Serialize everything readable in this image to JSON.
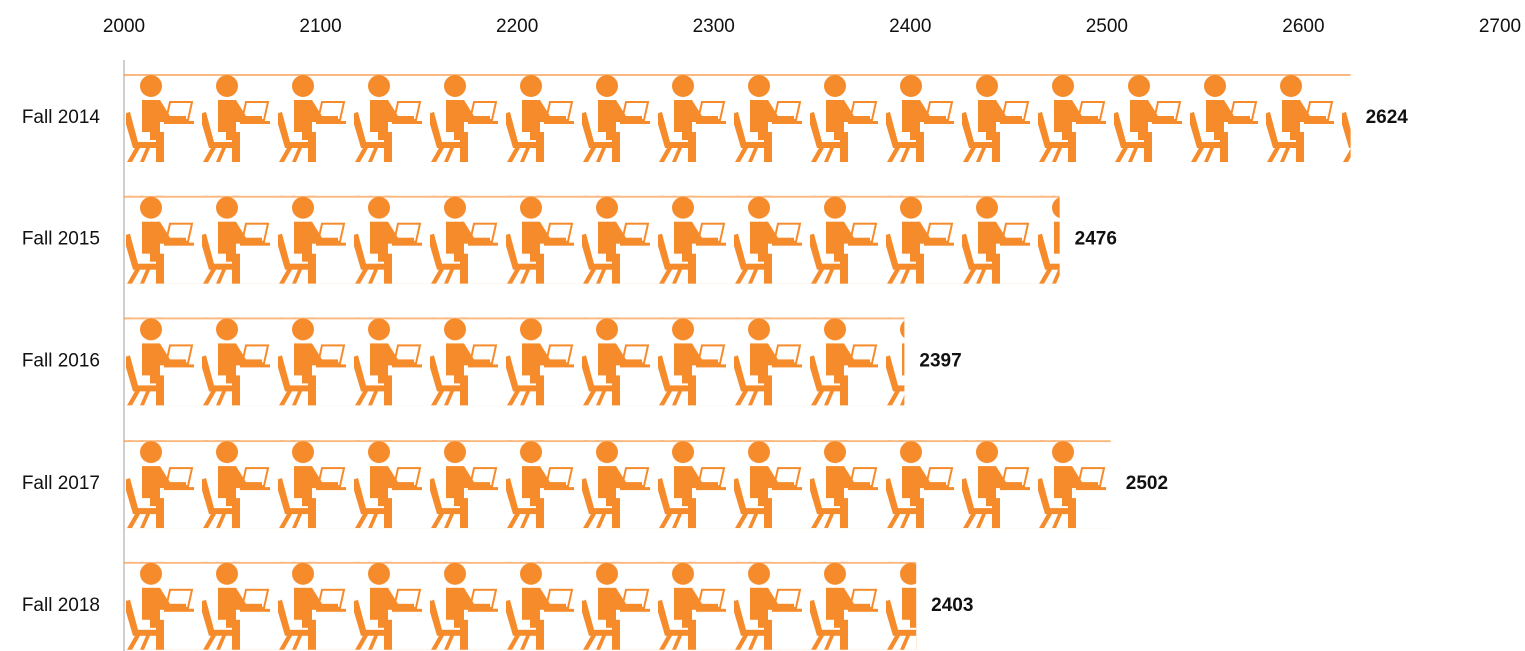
{
  "chart_data": {
    "type": "bar",
    "orientation": "horizontal",
    "categories": [
      "Fall 2014",
      "Fall 2015",
      "Fall 2016",
      "Fall 2017",
      "Fall 2018"
    ],
    "values": [
      2624,
      2476,
      2397,
      2502,
      2403
    ],
    "color": "#f68b2c",
    "xlim": [
      2000,
      2700
    ],
    "xticks": [
      2000,
      2100,
      2200,
      2300,
      2400,
      2500,
      2600,
      2700
    ]
  }
}
